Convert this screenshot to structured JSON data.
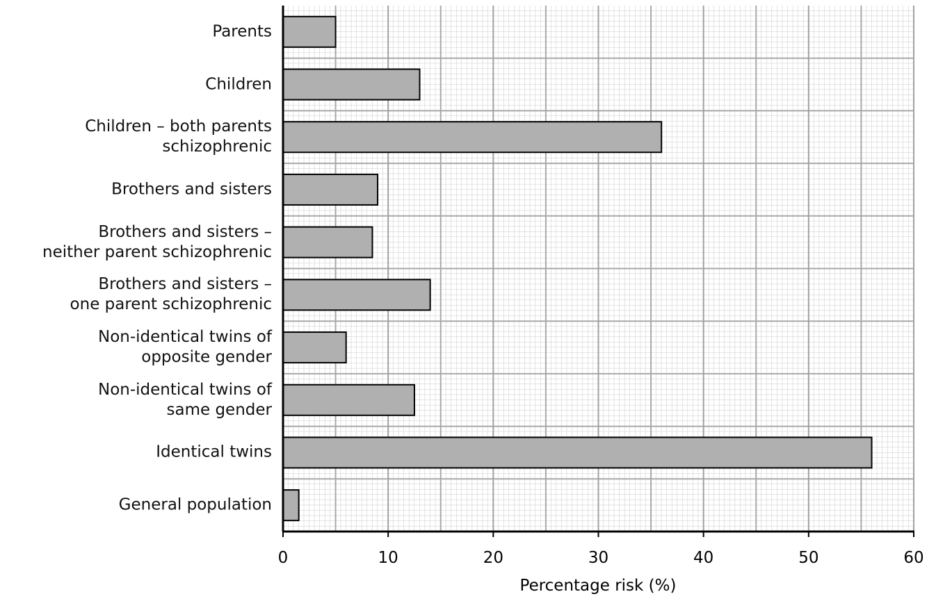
{
  "chart_data": {
    "type": "bar",
    "orientation": "horizontal",
    "categories": [
      "Parents",
      "Children",
      "Children – both parents\nschizophrenic",
      "Brothers and sisters",
      "Brothers and sisters –\nneither parent schizophrenic",
      "Brothers and sisters –\none parent schizophrenic",
      "Non-identical twins of\nopposite gender",
      "Non-identical twins of\nsame gender",
      "Identical twins",
      "General population"
    ],
    "values": [
      5,
      13,
      36,
      9,
      8.5,
      14,
      6,
      12.5,
      56,
      1.5
    ],
    "color": "#b0b0b0",
    "xlabel": "Percentage risk (%)",
    "xlim": [
      0,
      60
    ],
    "xticks": [
      0,
      10,
      20,
      30,
      40,
      50,
      60
    ],
    "grid": true
  }
}
